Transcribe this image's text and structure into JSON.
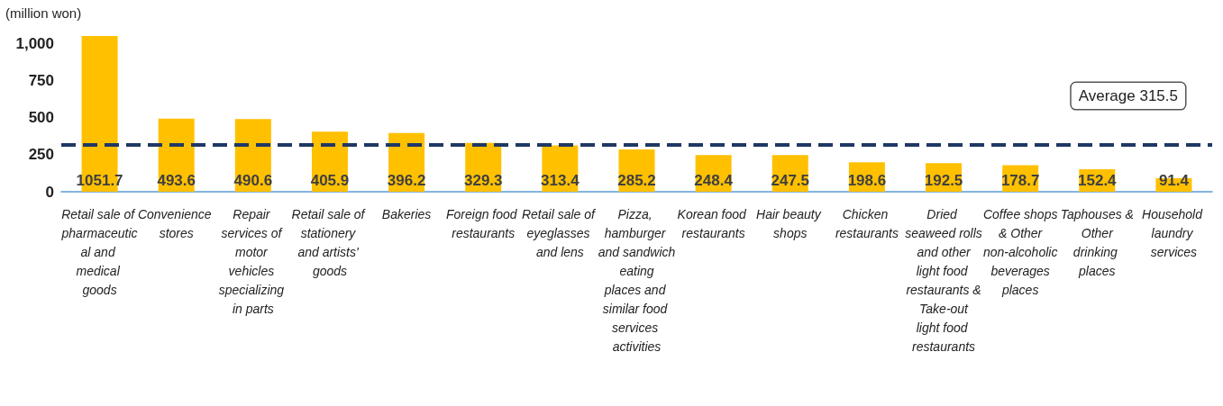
{
  "chart_data": {
    "type": "bar",
    "ylabel": "(million won)",
    "categories": [
      "Retail sale of pharmaceutical and medical goods",
      "Convenience stores",
      "Repair services of motor vehicles specializing in parts",
      "Retail sale of stationery and artists' goods",
      "Bakeries",
      "Foreign food restaurants",
      "Retail sale of eyeglasses and lens",
      "Pizza, hamburger and sandwich eating places and similar food services activities",
      "Korean food restaurants",
      "Hair beauty shops",
      "Chicken restaurants",
      "Dried seaweed rolls and other light food restaurants & Take-out light food restaurants",
      "Coffee shops & Other non-alcoholic beverages places",
      "Taphouses & Other drinking places",
      "Household laundry services"
    ],
    "values": [
      1051.7,
      493.6,
      490.6,
      405.9,
      396.2,
      329.3,
      313.4,
      285.2,
      248.4,
      247.5,
      198.6,
      192.5,
      178.7,
      152.4,
      91.4
    ],
    "color": "#ffc000",
    "data_labels": true,
    "ylim": [
      0,
      1051.7
    ],
    "yticks": [
      0,
      250,
      500,
      750,
      {
        "value": 1000,
        "label": "1,000"
      }
    ],
    "ref_lines": [
      {
        "axis": "y",
        "value": 315.5,
        "label": "Average 315.5",
        "color": "#1f3864",
        "line_style": "dashed"
      }
    ],
    "grid": false
  }
}
